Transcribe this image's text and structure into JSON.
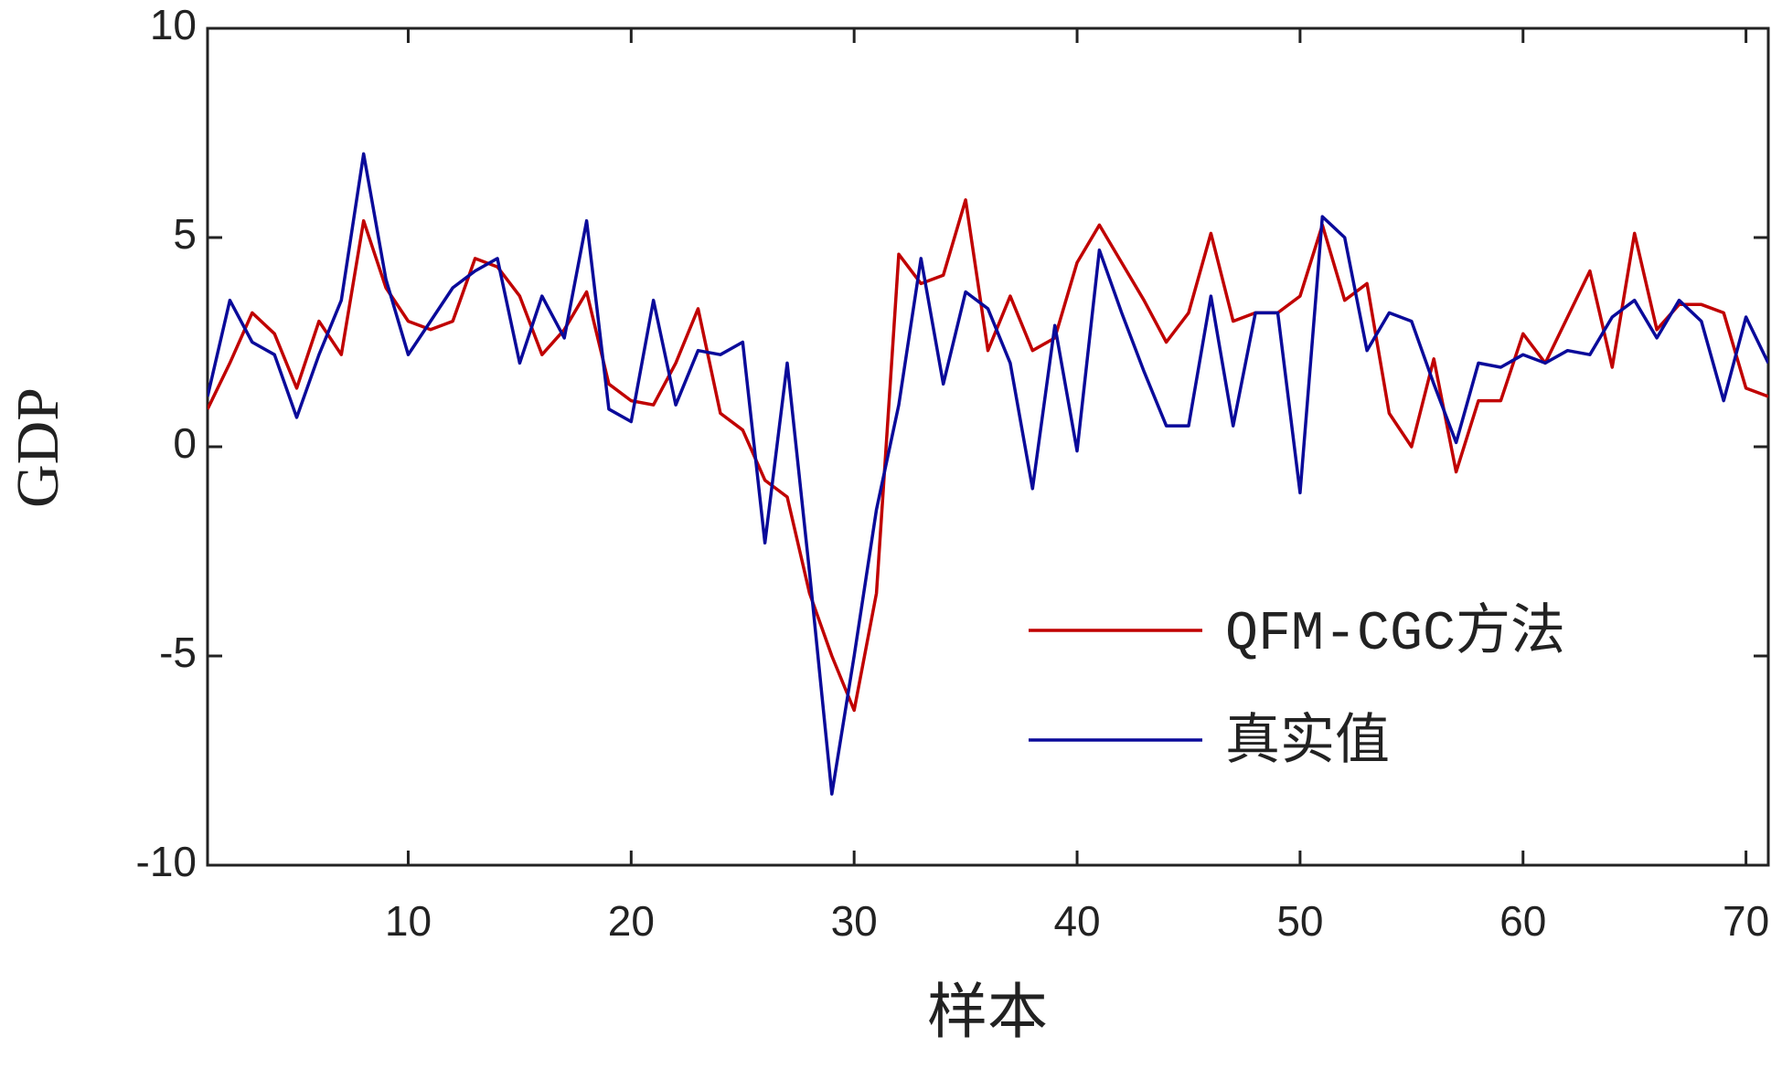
{
  "chart_data": {
    "type": "line",
    "x_label": "样本",
    "y_label": "GDP",
    "x": [
      1,
      2,
      3,
      4,
      5,
      6,
      7,
      8,
      9,
      10,
      11,
      12,
      13,
      14,
      15,
      16,
      17,
      18,
      19,
      20,
      21,
      22,
      23,
      24,
      25,
      26,
      27,
      28,
      29,
      30,
      31,
      32,
      33,
      34,
      35,
      36,
      37,
      38,
      39,
      40,
      41,
      42,
      43,
      44,
      45,
      46,
      47,
      48,
      49,
      50,
      51,
      52,
      53,
      54,
      55,
      56,
      57,
      58,
      59,
      60,
      61,
      62,
      63,
      64,
      65,
      66,
      67,
      68,
      69,
      70,
      71
    ],
    "series": [
      {
        "name": "QFM-CGC方法",
        "color": "#c00000",
        "values": [
          0.9,
          2.0,
          3.2,
          2.7,
          1.4,
          3.0,
          2.2,
          5.4,
          3.8,
          3.0,
          2.8,
          3.0,
          4.5,
          4.3,
          3.6,
          2.2,
          2.8,
          3.7,
          1.5,
          1.1,
          1.0,
          2.0,
          3.3,
          0.8,
          0.4,
          -0.8,
          -1.2,
          -3.5,
          -5.0,
          -6.3,
          -3.5,
          4.6,
          3.9,
          4.1,
          5.9,
          2.3,
          3.6,
          2.3,
          2.6,
          4.4,
          5.3,
          4.4,
          3.5,
          2.5,
          3.2,
          5.1,
          3.0,
          3.2,
          3.2,
          3.6,
          5.3,
          3.5,
          3.9,
          0.8,
          0.0,
          2.1,
          -0.6,
          1.1,
          1.1,
          2.7,
          2.0,
          3.1,
          4.2,
          1.9,
          5.1,
          2.8,
          3.4,
          3.4,
          3.2,
          1.4,
          1.2
        ]
      },
      {
        "name": "真实值",
        "color": "#0a0a9a",
        "values": [
          1.2,
          3.5,
          2.5,
          2.2,
          0.7,
          2.2,
          3.5,
          7.0,
          4.0,
          2.2,
          3.0,
          3.8,
          4.2,
          4.5,
          2.0,
          3.6,
          2.6,
          5.4,
          0.9,
          0.6,
          3.5,
          1.0,
          2.3,
          2.2,
          2.5,
          -2.3,
          2.0,
          -3.0,
          -8.3,
          -5.0,
          -1.5,
          1.0,
          4.5,
          1.5,
          3.7,
          3.3,
          2.0,
          -1.0,
          2.9,
          -0.1,
          4.7,
          3.2,
          1.8,
          0.5,
          0.5,
          3.6,
          0.5,
          3.2,
          3.2,
          -1.1,
          5.5,
          5.0,
          2.3,
          3.2,
          3.0,
          1.5,
          0.1,
          2.0,
          1.9,
          2.2,
          2.0,
          2.3,
          2.2,
          3.1,
          3.5,
          2.6,
          3.5,
          3.0,
          1.1,
          3.1,
          2.0
        ]
      }
    ],
    "xlim": [
      1,
      71
    ],
    "xticks": [
      10,
      20,
      30,
      40,
      50,
      60,
      70
    ],
    "ylim": [
      -10,
      10
    ],
    "yticks": [
      -10,
      -5,
      0,
      5,
      10
    ],
    "grid": false,
    "legend": "lower right"
  }
}
